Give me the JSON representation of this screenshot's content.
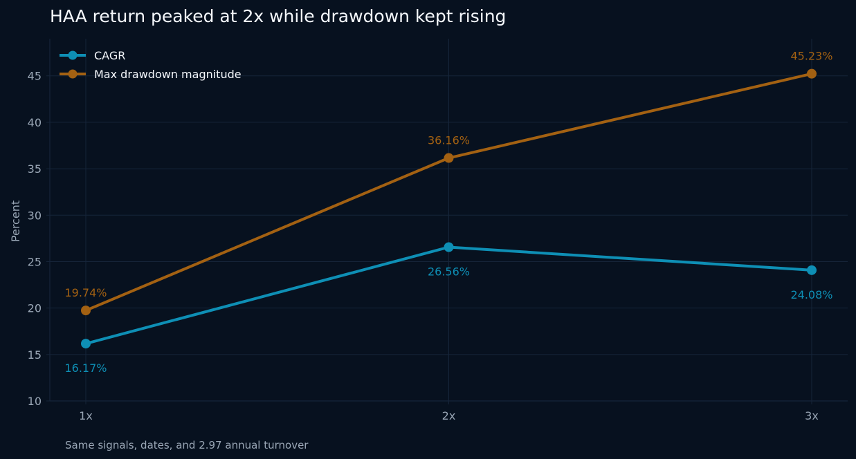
{
  "chart_data": {
    "type": "line",
    "title": "HAA return peaked at 2x while drawdown kept rising",
    "ylabel": "Percent",
    "categories": [
      "1x",
      "2x",
      "3x"
    ],
    "ylim": [
      10,
      49
    ],
    "yticks": [
      10,
      15,
      20,
      25,
      30,
      35,
      40,
      45
    ],
    "grid": true,
    "legend": "top-left",
    "series": [
      {
        "name": "CAGR",
        "color": "#0e8fb5",
        "values": [
          16.17,
          26.56,
          24.08
        ],
        "labels": [
          "16.17%",
          "26.56%",
          "24.08%"
        ]
      },
      {
        "name": "Max drawdown magnitude",
        "color": "#a36112",
        "values": [
          19.74,
          36.16,
          45.23
        ],
        "labels": [
          "19.74%",
          "36.16%",
          "45.23%"
        ]
      }
    ]
  },
  "footnote": "Same signals, dates, and 2.97 annual turnover",
  "colors": {
    "background": "#07111f",
    "grid": "#16253a",
    "tick_text": "#9aa7b6",
    "title_text": "#f4f7fb"
  }
}
